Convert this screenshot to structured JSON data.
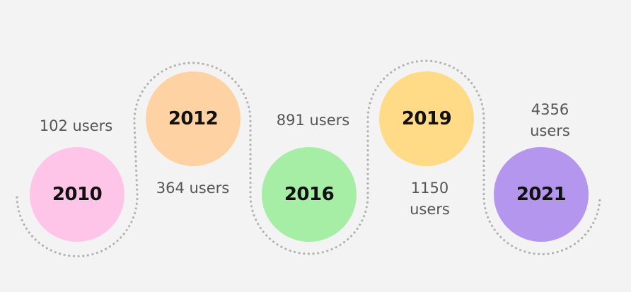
{
  "timeline": {
    "items": [
      {
        "year": "2010",
        "count": "102 users",
        "color": "#ffc5e8",
        "position": "below"
      },
      {
        "year": "2012",
        "count": "364 users",
        "color": "#ffd2a3",
        "position": "above"
      },
      {
        "year": "2016",
        "count": "891 users",
        "color": "#a6eda6",
        "position": "below"
      },
      {
        "year": "2019",
        "count": "1150\nusers",
        "color": "#ffdb88",
        "position": "above"
      },
      {
        "year": "2021",
        "count": "4356\nusers",
        "color": "#b596ee",
        "position": "below"
      }
    ],
    "path_color": "#b3b3b3",
    "path_style": "dotted"
  }
}
